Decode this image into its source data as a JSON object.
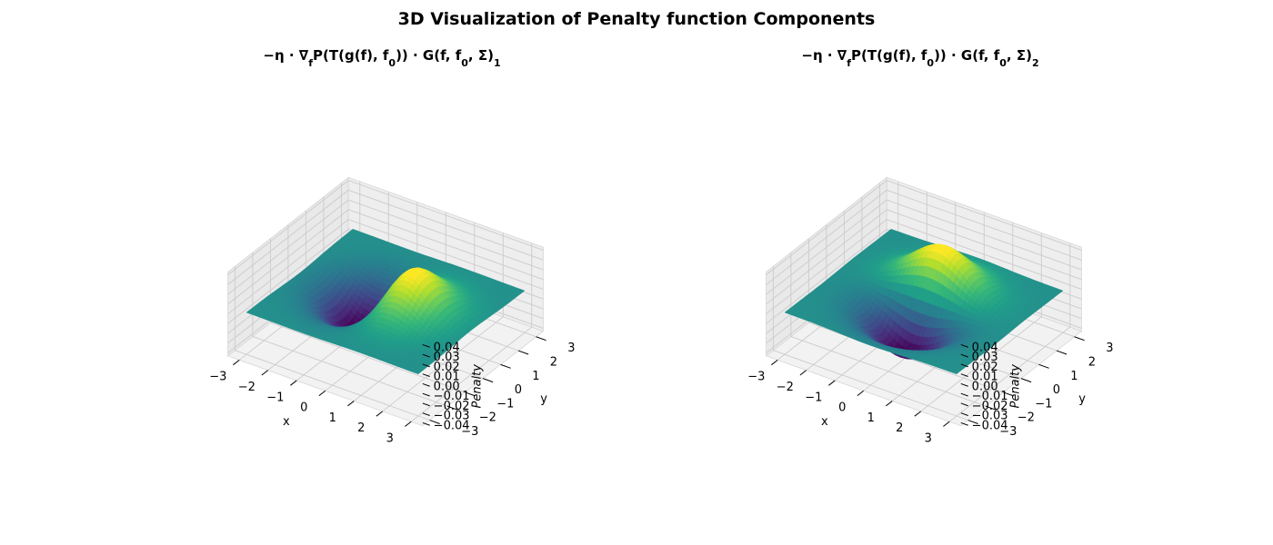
{
  "figure": {
    "title": "3D Visualization of Penalty function Components"
  },
  "chart_data": [
    {
      "type": "surface",
      "title": "−η · ∇fP(T(g(f), f0)) · G(f, f0, Σ)1",
      "title_parts": {
        "pre": "−η · ∇",
        "sub_f": "f",
        "mid": "P(T(g(f), f",
        "sub0": "0",
        "post": ")) · G(f, f",
        "sub0b": "0",
        "tail": ", Σ)",
        "index": "1"
      },
      "xlabel": "x",
      "ylabel": "y",
      "zlabel": "Penalty",
      "xticks": [
        "−3",
        "−2",
        "−1",
        "0",
        "1",
        "2",
        "3"
      ],
      "yticks": [
        "−3",
        "−2",
        "−1",
        "0",
        "1",
        "2",
        "3"
      ],
      "zticks": [
        "−0.04",
        "−0.03",
        "−0.02",
        "−0.01",
        "0.00",
        "0.01",
        "0.02",
        "0.03",
        "0.04"
      ],
      "xlim": [
        -3,
        3
      ],
      "ylim": [
        -3,
        3
      ],
      "zlim": [
        -0.04,
        0.04
      ],
      "component": "x",
      "function": "0.042 · x · exp((1 − x² − y²)/2)",
      "colormap": "viridis",
      "grid": true
    },
    {
      "type": "surface",
      "title": "−η · ∇fP(T(g(f), f0)) · G(f, f0, Σ)2",
      "title_parts": {
        "pre": "−η · ∇",
        "sub_f": "f",
        "mid": "P(T(g(f), f",
        "sub0": "0",
        "post": ")) · G(f, f",
        "sub0b": "0",
        "tail": ", Σ)",
        "index": "2"
      },
      "xlabel": "x",
      "ylabel": "y",
      "zlabel": "Penalty",
      "xticks": [
        "−3",
        "−2",
        "−1",
        "0",
        "1",
        "2",
        "3"
      ],
      "yticks": [
        "−3",
        "−2",
        "−1",
        "0",
        "1",
        "2",
        "3"
      ],
      "zticks": [
        "−0.04",
        "−0.03",
        "−0.02",
        "−0.01",
        "0.00",
        "0.01",
        "0.02",
        "0.03",
        "0.04"
      ],
      "xlim": [
        -3,
        3
      ],
      "ylim": [
        -3,
        3
      ],
      "zlim": [
        -0.04,
        0.04
      ],
      "component": "y",
      "function": "0.042 · y · exp((1 − x² − y²)/2)",
      "colormap": "viridis",
      "grid": true
    }
  ]
}
